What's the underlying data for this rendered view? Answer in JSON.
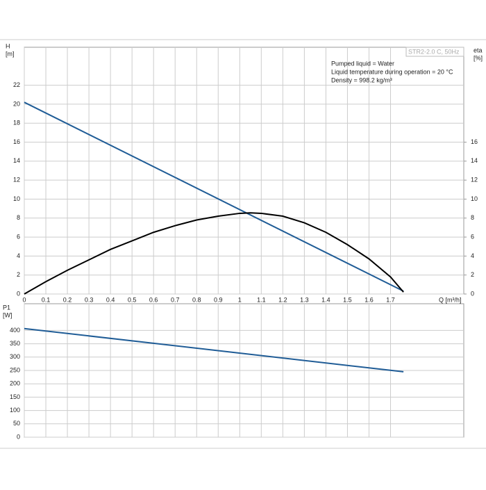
{
  "chart_data": [
    {
      "type": "line",
      "model_label": "STR2-2.0 C, 50Hz",
      "annotations": [
        "Pumped liquid = Water",
        "Liquid temperature during operation = 20 °C",
        "Density = 998.2 kg/m³"
      ],
      "ylabel": [
        "H",
        "[m]"
      ],
      "y2label": [
        "eta",
        "[%]"
      ],
      "xlabel": "Q [m³/h]",
      "xlim": [
        0,
        2.04
      ],
      "xticks": [
        0,
        0.1,
        0.2,
        0.3,
        0.4,
        0.5,
        0.6,
        0.7,
        0.8,
        0.9,
        1,
        1.1,
        1.2,
        1.3,
        1.4,
        1.5,
        1.6,
        1.7
      ],
      "ylim": [
        0,
        26
      ],
      "yticks": [
        0,
        2,
        4,
        6,
        8,
        10,
        12,
        14,
        16,
        18,
        20,
        22
      ],
      "y2lim": [
        0,
        26
      ],
      "y2ticks": [
        0,
        2,
        4,
        6,
        8,
        10,
        12,
        14,
        16
      ],
      "grid": true,
      "series": [
        {
          "color": "#1f5c96",
          "x": [
            0,
            1.76
          ],
          "values": [
            20.2,
            0.3
          ]
        },
        {
          "color": "#000000",
          "axis": "y2",
          "x": [
            0,
            0.1,
            0.2,
            0.3,
            0.4,
            0.5,
            0.6,
            0.7,
            0.8,
            0.9,
            1.0,
            1.05,
            1.1,
            1.2,
            1.3,
            1.4,
            1.5,
            1.6,
            1.7,
            1.76
          ],
          "values": [
            0,
            1.3,
            2.5,
            3.6,
            4.7,
            5.6,
            6.5,
            7.2,
            7.8,
            8.2,
            8.5,
            8.55,
            8.5,
            8.2,
            7.5,
            6.5,
            5.2,
            3.7,
            1.8,
            0.2
          ]
        }
      ]
    },
    {
      "type": "line",
      "ylabel": [
        "P1",
        "[W]"
      ],
      "xlim": [
        0,
        2.04
      ],
      "xticks": [
        0,
        0.1,
        0.2,
        0.3,
        0.4,
        0.5,
        0.6,
        0.7,
        0.8,
        0.9,
        1,
        1.1,
        1.2,
        1.3,
        1.4,
        1.5,
        1.6,
        1.7
      ],
      "ylim": [
        0,
        500
      ],
      "yticks": [
        0,
        50,
        100,
        150,
        200,
        250,
        300,
        350,
        400
      ],
      "grid": true,
      "series": [
        {
          "color": "#1f5c96",
          "x": [
            0,
            1.76
          ],
          "values": [
            407,
            245
          ]
        }
      ]
    }
  ]
}
